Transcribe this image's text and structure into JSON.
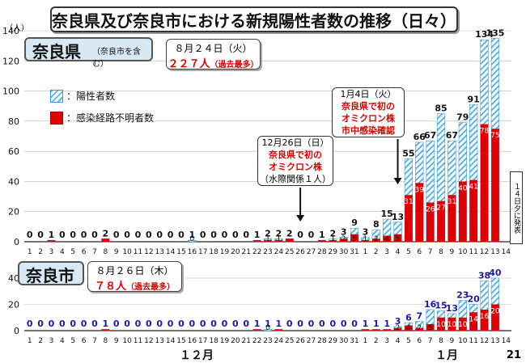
{
  "title": "奈良県及び奈良市における新規陽性者数の推移（日々）",
  "page_number": "21",
  "months": {
    "dec": "１２月",
    "jan": "１月"
  },
  "colors": {
    "positives": "#5ab4e6",
    "unknown": "#e00000",
    "label_blue": "#1a1aa8"
  },
  "nara_pref": {
    "name": "奈良県",
    "sub": "（奈良市を含む）",
    "y_unit": "（人）",
    "note_date": "８月２４日（火）",
    "note_value": "２２７人",
    "note_tag": "（過去最多）",
    "legend_positives": "：陽性者数",
    "legend_unknown": "：感染経路不明者数",
    "callout1": {
      "date": "12月26日（日）",
      "line1": "奈良県で初の",
      "line2": "オミクロン株",
      "line3": "（水際関係１人）"
    },
    "callout2": {
      "date": "1月4日（火）",
      "line1": "奈良県で初の",
      "line2": "オミクロン株",
      "line3": "市中感染確認"
    },
    "side_note": "１４日夕に発表"
  },
  "nara_city": {
    "name": "奈良市",
    "note_date": "８月２６日（木）",
    "note_value": "７８人",
    "note_tag": "（過去最多）"
  },
  "chart_data": [
    {
      "type": "bar",
      "title": "奈良県",
      "ylabel": "（人）",
      "ylim": [
        0,
        140
      ],
      "yticks": [
        0,
        20,
        40,
        60,
        80,
        100,
        120,
        140
      ],
      "categories": [
        "1",
        "2",
        "3",
        "4",
        "5",
        "6",
        "7",
        "8",
        "9",
        "10",
        "11",
        "12",
        "13",
        "14",
        "15",
        "16",
        "17",
        "18",
        "19",
        "20",
        "21",
        "22",
        "23",
        "24",
        "25",
        "26",
        "27",
        "28",
        "29",
        "30",
        "31",
        "1",
        "2",
        "3",
        "4",
        "5",
        "6",
        "7",
        "8",
        "9",
        "10",
        "11",
        "12",
        "13",
        "14"
      ],
      "series": [
        {
          "name": "陽性者数",
          "values": [
            0,
            0,
            1,
            0,
            0,
            0,
            0,
            2,
            0,
            0,
            0,
            0,
            0,
            0,
            0,
            1,
            0,
            0,
            0,
            0,
            0,
            1,
            2,
            2,
            2,
            0,
            0,
            1,
            2,
            3,
            9,
            3,
            8,
            15,
            13,
            55,
            66,
            67,
            85,
            67,
            79,
            91,
            134,
            135,
            null
          ]
        },
        {
          "name": "感染経路不明者数",
          "values": [
            0,
            0,
            1,
            0,
            0,
            0,
            0,
            2,
            0,
            0,
            0,
            0,
            0,
            0,
            0,
            0,
            0,
            0,
            0,
            0,
            0,
            1,
            1,
            1,
            2,
            0,
            0,
            1,
            1,
            2,
            5,
            1,
            2,
            4,
            5,
            31,
            39,
            26,
            27,
            31,
            40,
            41,
            78,
            75,
            null
          ]
        }
      ]
    },
    {
      "type": "bar",
      "title": "奈良市",
      "ylim": [
        0,
        40
      ],
      "yticks": [
        0,
        20,
        40
      ],
      "categories": [
        "1",
        "2",
        "3",
        "4",
        "5",
        "6",
        "7",
        "8",
        "9",
        "10",
        "11",
        "12",
        "13",
        "14",
        "15",
        "16",
        "17",
        "18",
        "19",
        "20",
        "21",
        "22",
        "23",
        "24",
        "25",
        "26",
        "27",
        "28",
        "29",
        "30",
        "31",
        "1",
        "2",
        "3",
        "4",
        "5",
        "6",
        "7",
        "8",
        "9",
        "10",
        "11",
        "12",
        "13",
        "14"
      ],
      "series": [
        {
          "name": "陽性者数",
          "values": [
            0,
            0,
            0,
            0,
            0,
            0,
            0,
            1,
            0,
            0,
            0,
            0,
            0,
            0,
            0,
            0,
            0,
            0,
            0,
            0,
            0,
            1,
            1,
            1,
            0,
            0,
            0,
            0,
            0,
            0,
            0,
            1,
            1,
            1,
            3,
            6,
            7,
            16,
            15,
            13,
            23,
            20,
            38,
            40,
            null
          ]
        },
        {
          "name": "感染経路不明者数",
          "values": [
            0,
            0,
            0,
            0,
            0,
            0,
            0,
            1,
            0,
            0,
            0,
            0,
            0,
            0,
            0,
            0,
            0,
            0,
            0,
            0,
            0,
            1,
            0,
            1,
            0,
            0,
            0,
            0,
            0,
            0,
            0,
            1,
            1,
            1,
            2,
            4,
            2,
            5,
            10,
            10,
            10,
            14,
            16,
            20,
            null
          ]
        }
      ]
    }
  ]
}
